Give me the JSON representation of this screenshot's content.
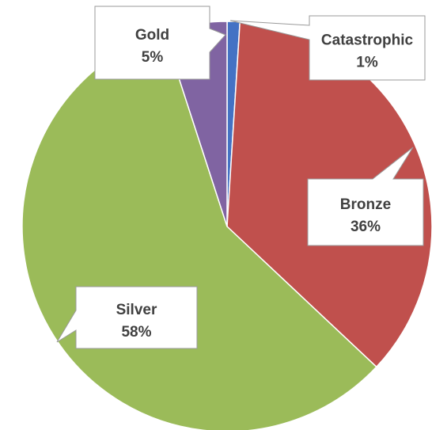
{
  "chart_data": {
    "type": "pie",
    "title": "",
    "start_angle_deg": 0,
    "direction": "clockwise",
    "legend": "none",
    "slices": [
      {
        "label": "Catastrophic",
        "value": 1,
        "value_label": "1%",
        "color": "#4472c4"
      },
      {
        "label": "Bronze",
        "value": 36,
        "value_label": "36%",
        "color": "#c0504d"
      },
      {
        "label": "Silver",
        "value": 58,
        "value_label": "58%",
        "color": "#9bbb59"
      },
      {
        "label": "Gold",
        "value": 5,
        "value_label": "5%",
        "color": "#8064a2"
      }
    ]
  }
}
